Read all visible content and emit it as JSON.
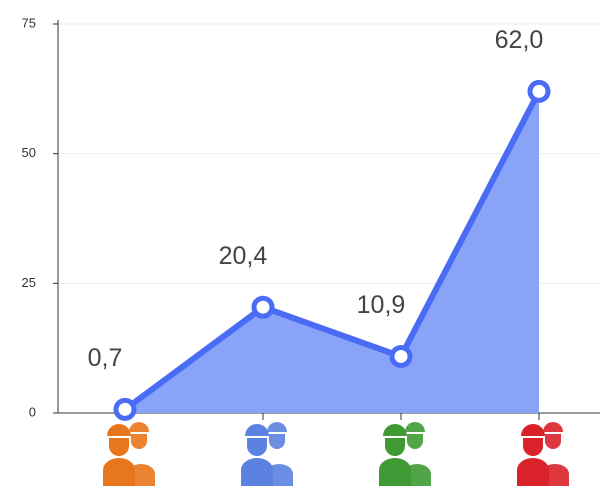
{
  "chart_data": {
    "type": "area",
    "categories": [
      null,
      null,
      null,
      null
    ],
    "values": [
      0.7,
      20.4,
      10.9,
      62.0
    ],
    "value_labels": [
      "0,7",
      "20,4",
      "10,9",
      "62,0"
    ],
    "color": "#4a6cf4",
    "fill": "#88a3f7",
    "ylim": [
      0,
      75
    ],
    "yticks": [
      0,
      25,
      50,
      75
    ],
    "grid": true
  }
}
